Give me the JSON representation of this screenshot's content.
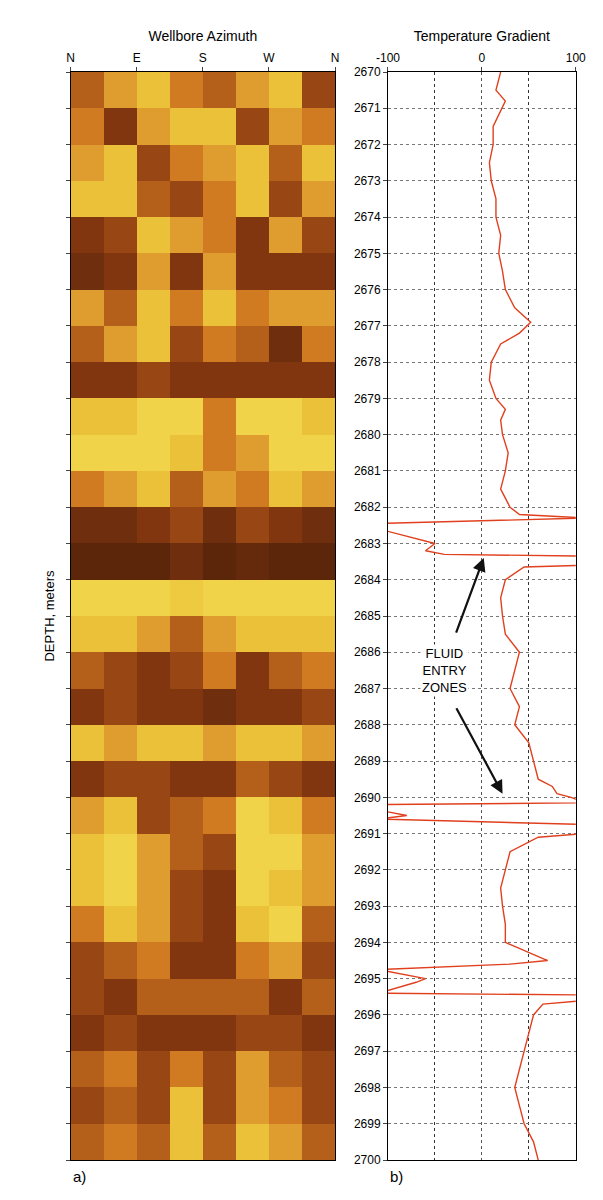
{
  "chart_data": [
    {
      "type": "heatmap",
      "title": "Wellbore Azimuth",
      "y_label": "DEPTH, meters",
      "panel_label": "a)",
      "x": [
        22.5,
        67.5,
        112.5,
        157.5,
        202.5,
        247.5,
        292.5,
        337.5
      ],
      "y": [
        2670.5,
        2671.5,
        2672.5,
        2673.5,
        2674.5,
        2675.5,
        2676.5,
        2677.5,
        2678.5,
        2679.5,
        2680.5,
        2681.5,
        2682.5,
        2683.5,
        2684.5,
        2685.5,
        2686.5,
        2687.5,
        2688.5,
        2689.5,
        2690.5,
        2691.5,
        2692.5,
        2693.5,
        2694.5,
        2695.5,
        2696.5,
        2697.5,
        2698.5,
        2699.5
      ],
      "cells": [
        [
          0.5,
          0.7,
          0.8,
          0.6,
          0.5,
          0.7,
          0.8,
          0.4
        ],
        [
          0.6,
          0.3,
          0.7,
          0.8,
          0.8,
          0.4,
          0.7,
          0.6
        ],
        [
          0.7,
          0.8,
          0.4,
          0.6,
          0.7,
          0.8,
          0.5,
          0.8
        ],
        [
          0.8,
          0.8,
          0.5,
          0.4,
          0.6,
          0.8,
          0.4,
          0.7
        ],
        [
          0.3,
          0.4,
          0.8,
          0.7,
          0.6,
          0.3,
          0.7,
          0.4
        ],
        [
          0.2,
          0.3,
          0.7,
          0.3,
          0.7,
          0.3,
          0.3,
          0.3
        ],
        [
          0.7,
          0.5,
          0.8,
          0.6,
          0.8,
          0.6,
          0.7,
          0.7
        ],
        [
          0.5,
          0.7,
          0.8,
          0.4,
          0.6,
          0.5,
          0.2,
          0.6
        ],
        [
          0.3,
          0.3,
          0.4,
          0.3,
          0.3,
          0.3,
          0.3,
          0.3
        ],
        [
          0.8,
          0.8,
          0.9,
          0.9,
          0.6,
          0.9,
          0.9,
          0.8
        ],
        [
          0.9,
          0.9,
          0.9,
          0.8,
          0.6,
          0.7,
          0.9,
          0.9
        ],
        [
          0.6,
          0.7,
          0.8,
          0.5,
          0.7,
          0.6,
          0.8,
          0.7
        ],
        [
          0.2,
          0.2,
          0.3,
          0.4,
          0.2,
          0.4,
          0.3,
          0.2
        ],
        [
          0.1,
          0.1,
          0.1,
          0.2,
          0.1,
          0.15,
          0.1,
          0.1
        ],
        [
          0.9,
          0.9,
          0.9,
          0.85,
          0.9,
          0.9,
          0.9,
          0.9
        ],
        [
          0.8,
          0.8,
          0.7,
          0.5,
          0.7,
          0.8,
          0.8,
          0.8
        ],
        [
          0.5,
          0.4,
          0.3,
          0.4,
          0.6,
          0.3,
          0.5,
          0.6
        ],
        [
          0.3,
          0.4,
          0.3,
          0.3,
          0.2,
          0.3,
          0.3,
          0.4
        ],
        [
          0.8,
          0.7,
          0.8,
          0.8,
          0.7,
          0.8,
          0.8,
          0.7
        ],
        [
          0.3,
          0.4,
          0.4,
          0.3,
          0.3,
          0.5,
          0.4,
          0.3
        ],
        [
          0.7,
          0.8,
          0.4,
          0.5,
          0.6,
          0.9,
          0.8,
          0.6
        ],
        [
          0.8,
          0.9,
          0.7,
          0.5,
          0.4,
          0.9,
          0.9,
          0.7
        ],
        [
          0.8,
          0.9,
          0.7,
          0.4,
          0.3,
          0.9,
          0.8,
          0.7
        ],
        [
          0.6,
          0.8,
          0.7,
          0.4,
          0.3,
          0.8,
          0.9,
          0.5
        ],
        [
          0.4,
          0.5,
          0.6,
          0.3,
          0.3,
          0.6,
          0.7,
          0.4
        ],
        [
          0.4,
          0.3,
          0.5,
          0.5,
          0.5,
          0.5,
          0.3,
          0.5
        ],
        [
          0.3,
          0.4,
          0.3,
          0.3,
          0.3,
          0.4,
          0.4,
          0.3
        ],
        [
          0.5,
          0.6,
          0.4,
          0.6,
          0.4,
          0.7,
          0.5,
          0.4
        ],
        [
          0.4,
          0.5,
          0.4,
          0.8,
          0.4,
          0.7,
          0.6,
          0.4
        ],
        [
          0.5,
          0.6,
          0.5,
          0.8,
          0.5,
          0.8,
          0.7,
          0.5
        ]
      ],
      "zlim": [
        0,
        1
      ],
      "xlim": [
        0,
        360
      ],
      "xticks": [
        {
          "value": 0,
          "label": "N"
        },
        {
          "value": 90,
          "label": "E"
        },
        {
          "value": 180,
          "label": "S"
        },
        {
          "value": 270,
          "label": "W"
        },
        {
          "value": 360,
          "label": "N"
        }
      ],
      "ylim": [
        2670,
        2700
      ],
      "yticks": [
        2670,
        2671,
        2672,
        2673,
        2674,
        2675,
        2676,
        2677,
        2678,
        2679,
        2680,
        2681,
        2682,
        2683,
        2684,
        2685,
        2686,
        2687,
        2688,
        2689,
        2690,
        2691,
        2692,
        2693,
        2694,
        2695,
        2696,
        2697,
        2698,
        2699,
        2700
      ],
      "tick_labels": "x",
      "grid": false
    },
    {
      "type": "line",
      "title": "Temperature Gradient",
      "panel_label": "b)",
      "color": "#e0401e",
      "x": [
        20,
        15,
        25,
        12,
        12,
        8,
        10,
        15,
        15,
        20,
        18,
        22,
        25,
        35,
        52,
        40,
        20,
        10,
        8,
        15,
        25,
        20,
        22,
        28,
        25,
        20,
        30,
        40,
        110,
        -110,
        -110,
        -50,
        -60,
        -40,
        110,
        110,
        45,
        25,
        20,
        22,
        25,
        40,
        35,
        30,
        40,
        35,
        50,
        55,
        60,
        75,
        80,
        95,
        110,
        -110,
        -100,
        -80,
        -110,
        110,
        110,
        60,
        30,
        25,
        20,
        22,
        25,
        25,
        70,
        30,
        -110,
        -60,
        -70,
        -110,
        110,
        110,
        65,
        55,
        50,
        45,
        40,
        35,
        40,
        45,
        55,
        60
      ],
      "y": [
        2670,
        2670.5,
        2670.8,
        2671.5,
        2672,
        2672.5,
        2673,
        2673.5,
        2674,
        2674.5,
        2675,
        2675.5,
        2676,
        2676.5,
        2676.9,
        2677.2,
        2677.5,
        2678,
        2678.5,
        2679,
        2679.3,
        2679.6,
        2680,
        2680.5,
        2681,
        2681.5,
        2682,
        2682.2,
        2682.3,
        2682.45,
        2682.6,
        2683.0,
        2683.2,
        2683.3,
        2683.35,
        2683.6,
        2683.65,
        2684,
        2684.5,
        2685,
        2685.5,
        2686,
        2686.5,
        2687,
        2687.5,
        2688,
        2688.5,
        2689,
        2689.5,
        2689.7,
        2689.9,
        2690.0,
        2690.15,
        2690.2,
        2690.4,
        2690.5,
        2690.6,
        2690.75,
        2691.0,
        2691.1,
        2691.5,
        2692,
        2692.5,
        2693,
        2693.5,
        2694,
        2694.5,
        2694.6,
        2694.75,
        2695.0,
        2695.1,
        2695.4,
        2695.45,
        2695.6,
        2695.7,
        2696,
        2696.5,
        2697,
        2697.5,
        2698,
        2698.5,
        2699,
        2699.5,
        2700
      ],
      "xlim": [
        -100,
        100
      ],
      "xticks": [
        -100,
        0,
        100
      ],
      "ylim": [
        2670,
        2700
      ],
      "yticks": [
        2670,
        2671,
        2672,
        2673,
        2674,
        2675,
        2676,
        2677,
        2678,
        2679,
        2680,
        2681,
        2682,
        2683,
        2684,
        2685,
        2686,
        2687,
        2688,
        2689,
        2690,
        2691,
        2692,
        2693,
        2694,
        2695,
        2696,
        2697,
        2698,
        2699,
        2700
      ],
      "grid": true,
      "annotations": [
        {
          "text": "FLUID ENTRY ZONES",
          "x": -40,
          "y": 2686.5,
          "arrows": [
            {
              "x": 2,
              "y": 2683.4
            },
            {
              "x": 22,
              "y": 2689.9
            }
          ]
        }
      ]
    }
  ]
}
